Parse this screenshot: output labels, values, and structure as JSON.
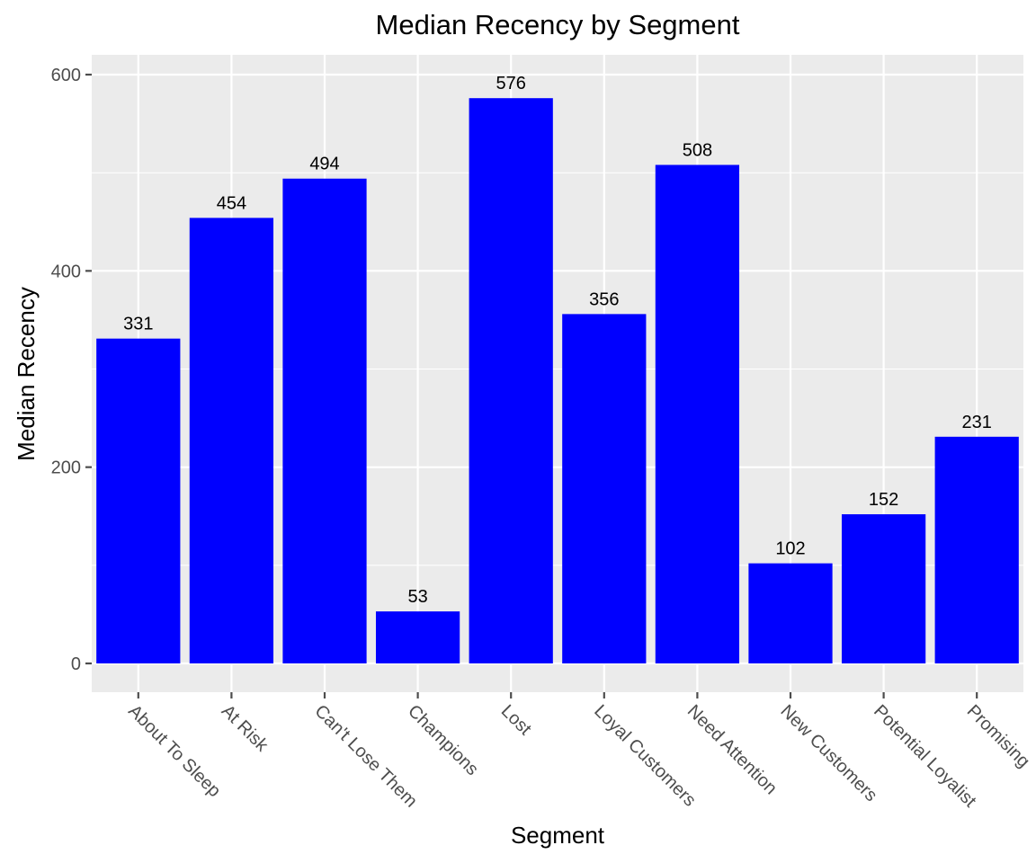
{
  "chart_data": {
    "type": "bar",
    "title": "Median Recency  by Segment",
    "xlabel": "Segment",
    "ylabel": "Median Recency",
    "categories": [
      "About To Sleep",
      "At Risk",
      "Can't Lose Them",
      "Champions",
      "Lost",
      "Loyal Customers",
      "Need Attention",
      "New Customers",
      "Potential Loyalist",
      "Promising"
    ],
    "values": [
      331,
      454,
      494,
      53,
      576,
      356,
      508,
      102,
      152,
      231
    ],
    "ylim": [
      -60,
      605
    ],
    "yticks": [
      0,
      200,
      400,
      600
    ],
    "grid": true,
    "legend": "none",
    "colors": {
      "bar": "#0000FF",
      "panel": "#EBEBEB",
      "grid": "#FFFFFF",
      "tick": "#4D4D4D"
    }
  }
}
